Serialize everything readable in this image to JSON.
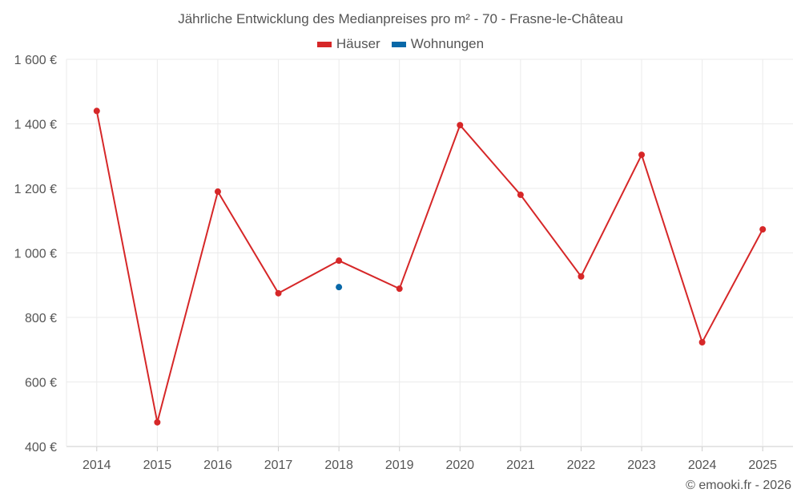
{
  "chart_data": {
    "type": "line",
    "title": "Jährliche Entwicklung des Medianpreises pro m² - 70 - Frasne-le-Château",
    "xlabel": "",
    "ylabel": "",
    "categories": [
      "2014",
      "2015",
      "2016",
      "2017",
      "2018",
      "2019",
      "2020",
      "2021",
      "2022",
      "2023",
      "2024",
      "2025"
    ],
    "ylim": [
      400,
      1600
    ],
    "yticks": [
      400,
      600,
      800,
      1000,
      1200,
      1400,
      1600
    ],
    "ytick_labels": [
      "400 €",
      "600 €",
      "800 €",
      "1 000 €",
      "1 200 €",
      "1 400 €",
      "1 600 €"
    ],
    "grid": true,
    "legend_position": "top-center",
    "series": [
      {
        "name": "Häuser",
        "color": "#d62728",
        "values": [
          1440,
          475,
          1190,
          875,
          976,
          889,
          1396,
          1180,
          927,
          1304,
          723,
          1073
        ]
      },
      {
        "name": "Wohnungen",
        "color": "#0868a8",
        "values": [
          null,
          null,
          null,
          null,
          894,
          null,
          null,
          null,
          null,
          null,
          null,
          null
        ]
      }
    ]
  },
  "credit": "© emooki.fr - 2026"
}
